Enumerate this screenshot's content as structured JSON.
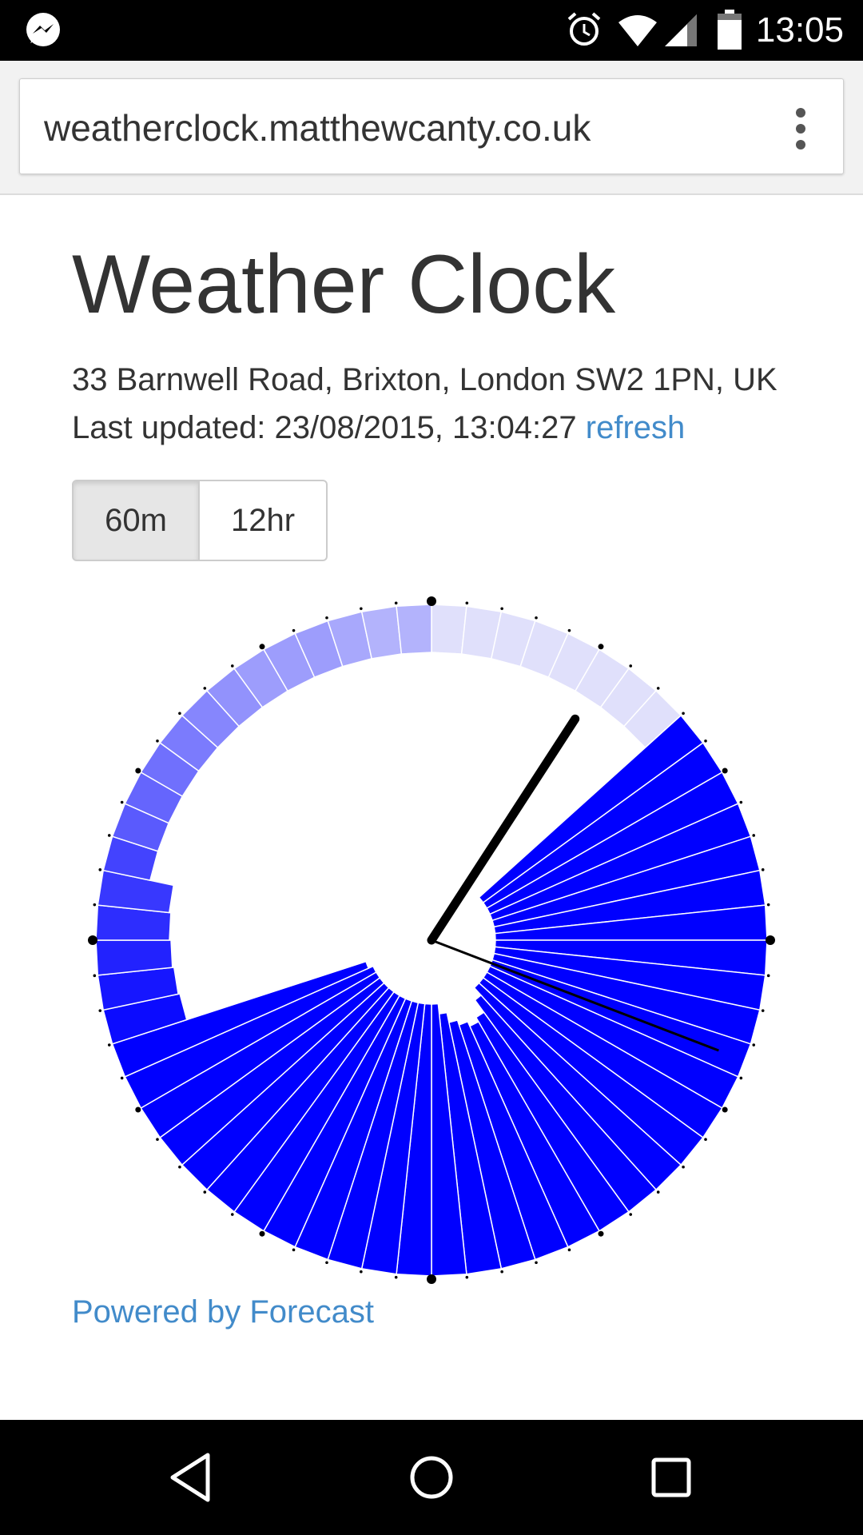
{
  "status_bar": {
    "time": "13:05",
    "icons": [
      "messenger-icon",
      "alarm-icon",
      "wifi-icon",
      "signal-icon",
      "battery-icon"
    ]
  },
  "browser": {
    "url": "weatherclock.matthewcanty.co.uk",
    "menu_icon": "overflow-menu-icon"
  },
  "page": {
    "title": "Weather Clock",
    "address": "33 Barnwell Road, Brixton, London SW2 1PN, UK",
    "last_updated_label": "Last updated: 23/08/2015, 13:04:27",
    "refresh_label": "refresh",
    "toggle": {
      "options": [
        "60m",
        "12hr"
      ],
      "selected": "60m"
    },
    "powered_by": "Powered by Forecast"
  },
  "clock": {
    "minute_segments": 60,
    "colors": {
      "bar": "#0000ff",
      "background_ring_light": "#e0e0fb",
      "hand": "#000000",
      "link": "#428bca"
    },
    "current_minute": 5,
    "hour_hand_minute_position": 5.5,
    "minute_hand_minute_position": 18.5,
    "intensity": [
      0.75,
      0.9,
      1,
      1,
      1,
      1,
      1,
      1,
      1,
      1,
      1,
      1,
      1,
      1,
      1,
      1,
      1,
      1,
      1,
      1,
      1,
      1,
      1,
      0.9,
      0.75,
      0.7,
      0.75,
      0.8,
      0.9,
      1,
      1,
      1,
      1,
      1,
      1,
      1,
      1,
      1,
      1,
      1,
      1,
      0.95,
      0.9,
      0.85,
      0.8,
      0.75,
      0.7,
      0.6,
      0.55,
      0.5,
      0.45,
      0.4,
      0.35,
      0.3,
      0.3,
      0.3,
      0.3,
      0.3,
      0.3,
      0.3
    ],
    "fill": [
      0,
      0,
      0,
      0,
      0,
      0,
      0,
      0,
      1,
      1,
      1,
      1,
      1,
      1,
      1,
      1,
      1,
      1,
      1,
      1,
      1,
      1,
      1,
      1,
      1,
      1,
      1,
      1,
      1,
      1,
      1,
      1,
      1,
      1,
      1,
      1,
      1,
      1,
      1,
      1,
      1,
      1,
      0.95,
      0.9,
      0.85,
      0.8,
      0.75,
      0.7,
      0.6,
      0.55,
      0.5,
      0.45,
      0.4,
      0.35,
      0.3,
      0.3,
      0.3,
      0.25,
      0.2,
      0.2
    ]
  },
  "nav_bar": {
    "icons": [
      "back-icon",
      "home-icon",
      "recents-icon"
    ]
  }
}
